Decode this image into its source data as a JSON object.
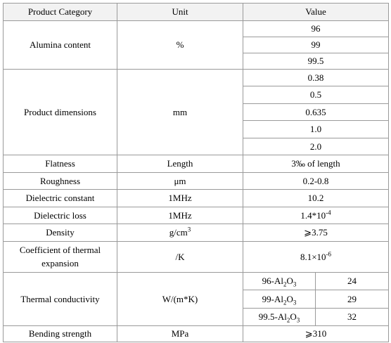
{
  "table": {
    "header": [
      "Product Category",
      "Unit",
      "Value"
    ],
    "rows": [
      {
        "category": "Alumina content",
        "unit": "%",
        "values": [
          "96",
          "99",
          "99.5"
        ]
      },
      {
        "category": "Product dimensions",
        "unit": "mm",
        "values": [
          "0.38",
          "0.5",
          "0.635",
          "1.0",
          "2.0"
        ]
      },
      {
        "category": "Flatness",
        "unit": "Length",
        "values": [
          "3‰  of length"
        ]
      },
      {
        "category": "Roughness",
        "unit": "μm",
        "values": [
          "0.2-0.8"
        ]
      },
      {
        "category": "Dielectric constant",
        "unit": "1MHz",
        "values": [
          "10.2"
        ]
      },
      {
        "category": "Dielectric loss",
        "unit": "1MHz",
        "values": [
          [
            {
              "text": "1.4*10"
            },
            {
              "sup": "-4"
            }
          ]
        ]
      },
      {
        "category": "Density",
        "unit": [
          {
            "text": "g/cm"
          },
          {
            "sup": "3"
          }
        ],
        "values": [
          "⩾3.75"
        ]
      },
      {
        "category": "Coefficient of thermal expansion",
        "unit": "/K",
        "values": [
          [
            {
              "text": "8.1×10"
            },
            {
              "sup": "-6"
            }
          ]
        ]
      },
      {
        "category": "Thermal conductivity",
        "unit": "W/(m*K)",
        "values": [
          {
            "grade": [
              {
                "text": "96-Al"
              },
              {
                "sub": "2"
              },
              {
                "text": "O"
              },
              {
                "sub": "3"
              }
            ],
            "value": "24"
          },
          {
            "grade": [
              {
                "text": "99-Al"
              },
              {
                "sub": "2"
              },
              {
                "text": "O"
              },
              {
                "sub": "3"
              }
            ],
            "value": "29"
          },
          {
            "grade": [
              {
                "text": "99.5-Al"
              },
              {
                "sub": "2"
              },
              {
                "text": "O"
              },
              {
                "sub": "3"
              }
            ],
            "value": "32"
          }
        ]
      },
      {
        "category": "Bending strength",
        "unit": "MPa",
        "values": [
          "⩾310"
        ]
      }
    ]
  }
}
